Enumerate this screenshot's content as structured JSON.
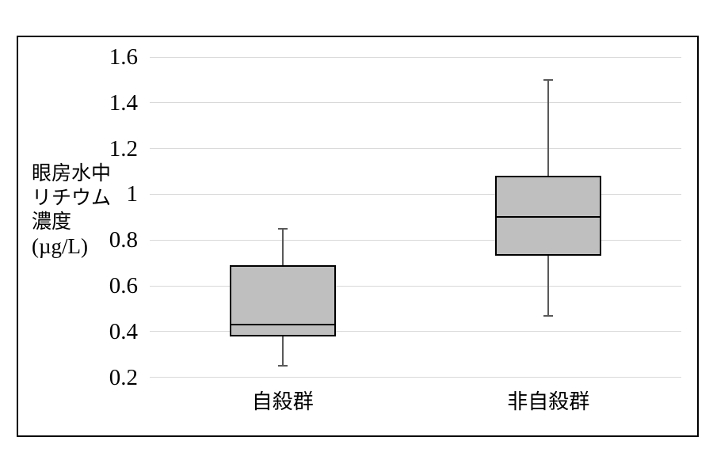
{
  "chart_data": {
    "type": "boxplot",
    "title": "",
    "ylabel_lines": [
      "眼房水中",
      "リチウム",
      "濃度",
      "(µg/L)"
    ],
    "categories": [
      "自殺群",
      "非自殺群"
    ],
    "ytick_labels": [
      "1.6",
      "1.4",
      "1.2",
      "1",
      "0.8",
      "0.6",
      "0.4",
      "0.2"
    ],
    "ytick_values": [
      1.6,
      1.4,
      1.2,
      1.0,
      0.8,
      0.6,
      0.4,
      0.2
    ],
    "grid": true,
    "legend": "none",
    "series": [
      {
        "name": "自殺群",
        "min": 0.25,
        "q1": 0.38,
        "median": 0.43,
        "q3": 0.69,
        "max": 0.85
      },
      {
        "name": "非自殺群",
        "min": 0.47,
        "q1": 0.73,
        "median": 0.9,
        "q3": 1.08,
        "max": 1.5
      }
    ],
    "colors": {
      "box_fill": "#bfbfbf",
      "box_border": "#000000",
      "median": "#000000",
      "whisker": "#595959",
      "gridline": "#d9d9d9",
      "frame_border": "#000000",
      "text": "#000000"
    }
  }
}
